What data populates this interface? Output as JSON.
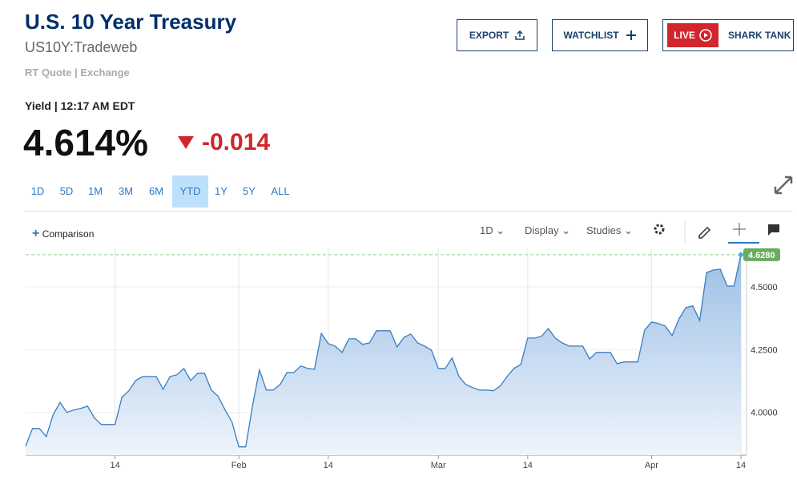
{
  "header": {
    "title": "U.S. 10 Year Treasury",
    "symbol": "US10Y:Tradeweb",
    "quote_type": "RT Quote",
    "exchange": "Exchange"
  },
  "buttons": {
    "export": "EXPORT",
    "watchlist": "WATCHLIST",
    "live": "LIVE",
    "shark_tank": "SHARK TANK"
  },
  "quote": {
    "label": "Yield",
    "time": "12:17 AM EDT",
    "price": "4.614%",
    "change": "-0.014"
  },
  "ranges": {
    "items": [
      "1D",
      "5D",
      "1M",
      "3M",
      "6M",
      "YTD",
      "1Y",
      "5Y",
      "ALL"
    ],
    "active": "YTD"
  },
  "toolbar": {
    "comparison": "Comparison",
    "interval": "1D",
    "display": "Display",
    "studies": "Studies"
  },
  "chart_data": {
    "type": "line",
    "color": "#3a7cc2",
    "grid": true,
    "categories": [
      null,
      null,
      null,
      null,
      null,
      null,
      null,
      null,
      null,
      null,
      null,
      null,
      null,
      "14",
      null,
      null,
      null,
      null,
      null,
      null,
      null,
      null,
      null,
      null,
      null,
      null,
      null,
      null,
      null,
      null,
      null,
      "Feb",
      null,
      null,
      null,
      null,
      null,
      null,
      null,
      null,
      null,
      null,
      null,
      null,
      "14",
      null,
      null,
      null,
      null,
      null,
      null,
      null,
      null,
      null,
      null,
      null,
      null,
      null,
      null,
      null,
      "Mar",
      null,
      null,
      null,
      null,
      null,
      null,
      null,
      null,
      null,
      null,
      null,
      null,
      "14",
      null,
      null,
      null,
      null,
      null,
      null,
      null,
      null,
      null,
      null,
      null,
      null,
      null,
      null,
      null,
      null,
      null,
      "Apr",
      null,
      null,
      null,
      null,
      null,
      null,
      null,
      null,
      null,
      null,
      null,
      null,
      "14"
    ],
    "values": [
      3.866,
      3.936,
      3.936,
      3.904,
      3.99,
      4.04,
      4.0,
      4.01,
      4.016,
      4.025,
      3.978,
      3.952,
      3.952,
      3.952,
      4.06,
      4.086,
      4.127,
      4.143,
      4.143,
      4.143,
      4.092,
      4.143,
      4.15,
      4.175,
      4.127,
      4.156,
      4.156,
      4.089,
      4.064,
      4.01,
      3.962,
      3.863,
      3.863,
      4.029,
      4.169,
      4.089,
      4.089,
      4.111,
      4.159,
      4.159,
      4.185,
      4.175,
      4.172,
      4.315,
      4.274,
      4.264,
      4.239,
      4.293,
      4.293,
      4.271,
      4.277,
      4.325,
      4.325,
      4.325,
      4.261,
      4.299,
      4.312,
      4.277,
      4.264,
      4.248,
      4.175,
      4.175,
      4.217,
      4.143,
      4.111,
      4.099,
      4.089,
      4.089,
      4.086,
      4.105,
      4.143,
      4.175,
      4.191,
      4.296,
      4.296,
      4.303,
      4.334,
      4.296,
      4.277,
      4.264,
      4.264,
      4.264,
      4.213,
      4.239,
      4.239,
      4.239,
      4.194,
      4.201,
      4.201,
      4.201,
      4.328,
      4.36,
      4.354,
      4.344,
      4.306,
      4.373,
      4.417,
      4.424,
      4.366,
      4.557,
      4.567,
      4.57,
      4.503,
      4.503,
      4.628
    ],
    "current_label": "4.6280",
    "ylim": [
      3.83,
      4.653
    ],
    "yticks": [
      {
        "value": 4,
        "label": "4.0000"
      },
      {
        "value": 4.25,
        "label": "4.2500"
      },
      {
        "value": 4.5,
        "label": "4.5000"
      }
    ]
  }
}
